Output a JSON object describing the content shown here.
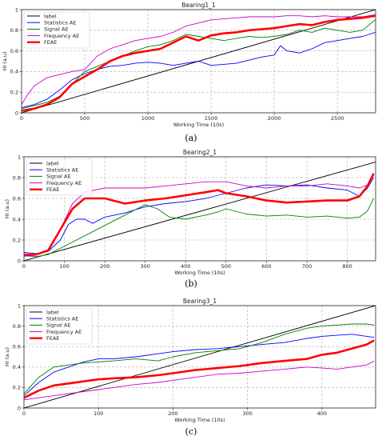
{
  "chart_data": [
    {
      "type": "line",
      "title": "Bearing1_1",
      "xlabel": "Working Time (10s)",
      "ylabel": "HI (a.u)",
      "caption": "(a)",
      "xlim": [
        0,
        2803
      ],
      "ylim": [
        0,
        1.0
      ],
      "xticks": [
        0,
        500,
        1000,
        1500,
        2000,
        2500
      ],
      "yticks": [
        0,
        0.2,
        0.4,
        0.6,
        0.8,
        1.0
      ],
      "grid": true,
      "legend_position": "top-left",
      "series": [
        {
          "name": "label",
          "color": "#000000",
          "x": [
            0,
            2803
          ],
          "y": [
            0,
            1.0
          ]
        },
        {
          "name": "Statistics AE",
          "color": "#0000ff",
          "x": [
            0,
            100,
            200,
            300,
            400,
            500,
            600,
            700,
            800,
            900,
            1000,
            1100,
            1200,
            1300,
            1400,
            1500,
            1600,
            1700,
            1800,
            1900,
            2000,
            2050,
            2100,
            2200,
            2300,
            2400,
            2500,
            2600,
            2700,
            2750,
            2800
          ],
          "y": [
            0.05,
            0.08,
            0.13,
            0.22,
            0.32,
            0.38,
            0.42,
            0.45,
            0.46,
            0.48,
            0.49,
            0.48,
            0.46,
            0.48,
            0.5,
            0.46,
            0.47,
            0.48,
            0.51,
            0.54,
            0.56,
            0.65,
            0.6,
            0.58,
            0.62,
            0.68,
            0.7,
            0.72,
            0.74,
            0.76,
            0.78
          ]
        },
        {
          "name": "Signal AE",
          "color": "#008000",
          "x": [
            0,
            100,
            200,
            300,
            400,
            500,
            600,
            700,
            800,
            900,
            1000,
            1100,
            1200,
            1300,
            1400,
            1500,
            1600,
            1700,
            1800,
            1900,
            2000,
            2100,
            2200,
            2300,
            2400,
            2500,
            2600,
            2700,
            2800
          ],
          "y": [
            0.04,
            0.07,
            0.1,
            0.16,
            0.28,
            0.4,
            0.45,
            0.5,
            0.55,
            0.6,
            0.64,
            0.66,
            0.7,
            0.76,
            0.74,
            0.72,
            0.7,
            0.72,
            0.74,
            0.73,
            0.74,
            0.76,
            0.8,
            0.78,
            0.82,
            0.8,
            0.78,
            0.8,
            0.9
          ]
        },
        {
          "name": "Frequency AE",
          "color": "#cc00cc",
          "x": [
            0,
            50,
            100,
            200,
            300,
            400,
            500,
            600,
            700,
            800,
            900,
            1000,
            1100,
            1200,
            1300,
            1400,
            1500,
            1600,
            1700,
            1800,
            1900,
            2000,
            2100,
            2200,
            2300,
            2400,
            2500,
            2600,
            2700,
            2800
          ],
          "y": [
            0.08,
            0.18,
            0.26,
            0.34,
            0.37,
            0.4,
            0.42,
            0.55,
            0.62,
            0.66,
            0.7,
            0.72,
            0.74,
            0.78,
            0.84,
            0.87,
            0.9,
            0.91,
            0.92,
            0.93,
            0.93,
            0.93,
            0.94,
            0.94,
            0.93,
            0.94,
            0.93,
            0.93,
            0.93,
            0.95
          ]
        },
        {
          "name": "FEAE",
          "color": "#ff0000",
          "width": 2.6,
          "x": [
            0,
            100,
            200,
            300,
            400,
            500,
            600,
            700,
            800,
            900,
            1000,
            1100,
            1200,
            1300,
            1400,
            1500,
            1600,
            1700,
            1800,
            1900,
            2000,
            2100,
            2200,
            2300,
            2400,
            2500,
            2600,
            2700,
            2800
          ],
          "y": [
            0.02,
            0.04,
            0.08,
            0.15,
            0.28,
            0.35,
            0.42,
            0.5,
            0.55,
            0.58,
            0.6,
            0.62,
            0.68,
            0.74,
            0.7,
            0.75,
            0.77,
            0.78,
            0.8,
            0.81,
            0.82,
            0.84,
            0.86,
            0.85,
            0.88,
            0.9,
            0.91,
            0.92,
            0.94
          ]
        }
      ]
    },
    {
      "type": "line",
      "title": "Bearing2_1",
      "xlabel": "Working Time (10s)",
      "ylabel": "HI (a.u)",
      "caption": "(b)",
      "xlim": [
        0,
        870
      ],
      "ylim": [
        0,
        1.0
      ],
      "xticks": [
        0,
        100,
        200,
        300,
        400,
        500,
        600,
        700,
        800
      ],
      "yticks": [
        0,
        0.2,
        0.4,
        0.6,
        0.8,
        1.0
      ],
      "grid": true,
      "legend_position": "top-left",
      "series": [
        {
          "name": "label",
          "color": "#000000",
          "x": [
            0,
            870
          ],
          "y": [
            0,
            0.95
          ]
        },
        {
          "name": "Statistics AE",
          "color": "#0000ff",
          "x": [
            0,
            30,
            60,
            90,
            110,
            130,
            150,
            170,
            200,
            250,
            300,
            350,
            400,
            450,
            500,
            550,
            600,
            650,
            700,
            750,
            800,
            830,
            850,
            865
          ],
          "y": [
            0.08,
            0.07,
            0.09,
            0.2,
            0.35,
            0.4,
            0.4,
            0.36,
            0.42,
            0.46,
            0.52,
            0.55,
            0.57,
            0.6,
            0.65,
            0.7,
            0.73,
            0.72,
            0.73,
            0.7,
            0.68,
            0.62,
            0.7,
            0.8
          ]
        },
        {
          "name": "Signal AE",
          "color": "#008000",
          "x": [
            0,
            30,
            60,
            90,
            120,
            150,
            200,
            250,
            300,
            330,
            360,
            400,
            450,
            480,
            500,
            550,
            600,
            650,
            700,
            750,
            800,
            830,
            850,
            865
          ],
          "y": [
            0.05,
            0.04,
            0.06,
            0.12,
            0.18,
            0.24,
            0.34,
            0.44,
            0.54,
            0.5,
            0.42,
            0.4,
            0.44,
            0.47,
            0.5,
            0.45,
            0.43,
            0.44,
            0.42,
            0.43,
            0.41,
            0.42,
            0.48,
            0.6
          ]
        },
        {
          "name": "Frequency AE",
          "color": "#cc00cc",
          "x": [
            0,
            30,
            60,
            90,
            120,
            150,
            200,
            250,
            300,
            350,
            400,
            450,
            500,
            550,
            600,
            650,
            700,
            750,
            800,
            830,
            850,
            865
          ],
          "y": [
            0.07,
            0.06,
            0.1,
            0.3,
            0.55,
            0.66,
            0.7,
            0.7,
            0.7,
            0.72,
            0.74,
            0.76,
            0.76,
            0.72,
            0.7,
            0.72,
            0.72,
            0.74,
            0.72,
            0.7,
            0.73,
            0.82
          ]
        },
        {
          "name": "FEAE",
          "color": "#ff0000",
          "width": 2.6,
          "x": [
            0,
            30,
            60,
            90,
            120,
            150,
            200,
            250,
            300,
            350,
            400,
            450,
            480,
            500,
            550,
            600,
            650,
            700,
            750,
            800,
            830,
            850,
            865
          ],
          "y": [
            0.05,
            0.06,
            0.1,
            0.3,
            0.5,
            0.6,
            0.6,
            0.55,
            0.58,
            0.6,
            0.63,
            0.66,
            0.68,
            0.65,
            0.62,
            0.58,
            0.56,
            0.57,
            0.58,
            0.58,
            0.62,
            0.72,
            0.84
          ]
        }
      ]
    },
    {
      "type": "line",
      "title": "Bearing3_1",
      "xlabel": "Working Time (10s)",
      "ylabel": "HI (a.u)",
      "caption": "(c)",
      "xlim": [
        0,
        472
      ],
      "ylim": [
        0,
        1.0
      ],
      "xticks": [
        0,
        100,
        200,
        300,
        400
      ],
      "yticks": [
        0,
        0.2,
        0.4,
        0.6,
        0.8,
        1.0
      ],
      "grid": true,
      "legend_position": "top-left",
      "series": [
        {
          "name": "label",
          "color": "#000000",
          "x": [
            0,
            472
          ],
          "y": [
            0,
            1.0
          ]
        },
        {
          "name": "Statistics AE",
          "color": "#0000ff",
          "x": [
            0,
            20,
            40,
            60,
            80,
            100,
            120,
            150,
            180,
            200,
            230,
            260,
            290,
            320,
            350,
            380,
            400,
            420,
            440,
            460,
            470
          ],
          "y": [
            0.12,
            0.25,
            0.35,
            0.4,
            0.45,
            0.48,
            0.48,
            0.5,
            0.53,
            0.55,
            0.57,
            0.58,
            0.6,
            0.62,
            0.64,
            0.68,
            0.7,
            0.71,
            0.72,
            0.7,
            0.69
          ]
        },
        {
          "name": "Signal AE",
          "color": "#008000",
          "x": [
            0,
            20,
            40,
            60,
            80,
            100,
            120,
            150,
            180,
            200,
            230,
            260,
            290,
            320,
            350,
            380,
            400,
            420,
            440,
            460,
            470
          ],
          "y": [
            0.14,
            0.3,
            0.4,
            0.42,
            0.44,
            0.45,
            0.46,
            0.48,
            0.46,
            0.5,
            0.54,
            0.56,
            0.58,
            0.64,
            0.72,
            0.78,
            0.8,
            0.81,
            0.82,
            0.82,
            0.81
          ]
        },
        {
          "name": "Frequency AE",
          "color": "#cc00cc",
          "x": [
            0,
            20,
            40,
            60,
            80,
            100,
            120,
            150,
            180,
            200,
            230,
            260,
            290,
            320,
            350,
            380,
            400,
            420,
            440,
            460,
            470
          ],
          "y": [
            0.08,
            0.1,
            0.12,
            0.14,
            0.16,
            0.18,
            0.2,
            0.23,
            0.25,
            0.27,
            0.3,
            0.33,
            0.34,
            0.36,
            0.38,
            0.4,
            0.39,
            0.38,
            0.4,
            0.42,
            0.46
          ]
        },
        {
          "name": "FEAE",
          "color": "#ff0000",
          "width": 2.6,
          "x": [
            0,
            20,
            40,
            60,
            80,
            100,
            120,
            150,
            180,
            200,
            230,
            260,
            290,
            320,
            350,
            380,
            400,
            420,
            440,
            460,
            470
          ],
          "y": [
            0.1,
            0.17,
            0.22,
            0.24,
            0.26,
            0.28,
            0.29,
            0.3,
            0.32,
            0.34,
            0.37,
            0.39,
            0.41,
            0.44,
            0.46,
            0.48,
            0.52,
            0.54,
            0.58,
            0.62,
            0.66
          ]
        }
      ]
    }
  ]
}
